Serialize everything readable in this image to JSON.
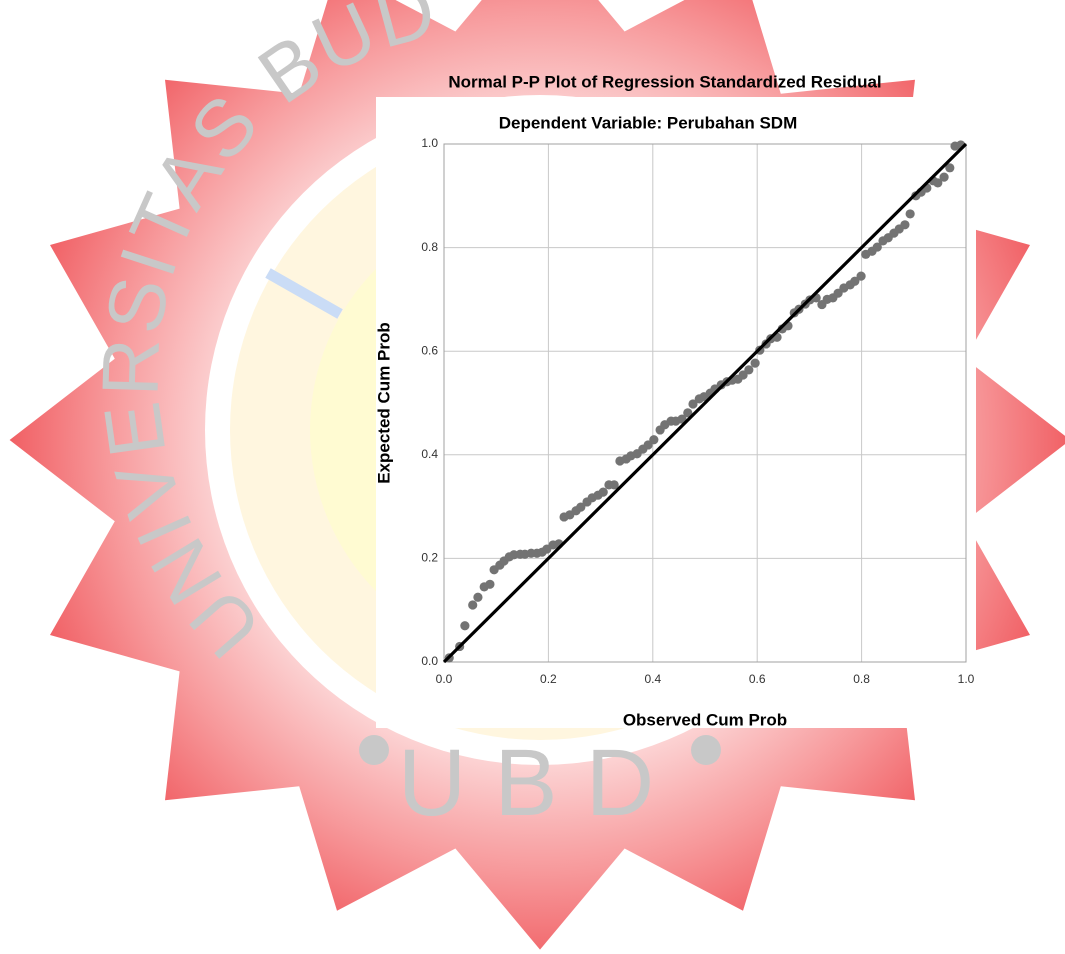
{
  "watermark": {
    "arc_text": "UNIVERSITAS BUD",
    "bottom_text": "UBD"
  },
  "chart_data": {
    "type": "scatter",
    "title": "Normal P-P Plot of Regression Standardized Residual",
    "subtitle": "Dependent Variable: Perubahan SDM",
    "x_label": "Observed Cum Prob",
    "y_label": "Expected Cum Prob",
    "xlim": [
      0,
      1
    ],
    "ylim": [
      0,
      1
    ],
    "xticks": [
      {
        "value": 0,
        "label": "0.0"
      },
      0.2,
      0.4,
      0.6,
      0.8,
      {
        "value": 1,
        "label": "1.0"
      }
    ],
    "yticks": [
      {
        "value": 0,
        "label": "0.0"
      },
      0.2,
      0.4,
      0.6,
      0.8,
      {
        "value": 1,
        "label": "1.0"
      }
    ],
    "grid": true,
    "color": "#737373",
    "reference_line": {
      "color": "#000000",
      "x": [
        0,
        1
      ],
      "y": [
        0,
        1
      ]
    },
    "x": [
      0.01,
      0.03,
      0.04,
      0.055,
      0.065,
      0.077,
      0.088,
      0.096,
      0.107,
      0.115,
      0.125,
      0.134,
      0.146,
      0.155,
      0.167,
      0.178,
      0.188,
      0.197,
      0.209,
      0.22,
      0.23,
      0.241,
      0.253,
      0.262,
      0.274,
      0.284,
      0.295,
      0.305,
      0.316,
      0.326,
      0.337,
      0.349,
      0.358,
      0.37,
      0.381,
      0.391,
      0.402,
      0.414,
      0.423,
      0.435,
      0.444,
      0.456,
      0.467,
      0.477,
      0.489,
      0.498,
      0.51,
      0.519,
      0.531,
      0.542,
      0.552,
      0.563,
      0.573,
      0.584,
      0.596,
      0.605,
      0.617,
      0.626,
      0.638,
      0.648,
      0.659,
      0.671,
      0.68,
      0.692,
      0.701,
      0.713,
      0.724,
      0.734,
      0.745,
      0.755,
      0.766,
      0.778,
      0.787,
      0.799,
      0.808,
      0.82,
      0.83,
      0.841,
      0.851,
      0.862,
      0.872,
      0.883,
      0.893,
      0.904,
      0.914,
      0.925,
      0.937,
      0.946,
      0.958,
      0.969,
      0.979,
      0.99
    ],
    "values": [
      0.008,
      0.03,
      0.07,
      0.11,
      0.125,
      0.145,
      0.15,
      0.178,
      0.187,
      0.195,
      0.203,
      0.207,
      0.208,
      0.208,
      0.21,
      0.21,
      0.212,
      0.218,
      0.226,
      0.228,
      0.28,
      0.284,
      0.292,
      0.299,
      0.309,
      0.317,
      0.322,
      0.328,
      0.342,
      0.342,
      0.388,
      0.392,
      0.398,
      0.402,
      0.411,
      0.419,
      0.429,
      0.448,
      0.458,
      0.465,
      0.465,
      0.469,
      0.481,
      0.498,
      0.508,
      0.512,
      0.519,
      0.527,
      0.535,
      0.541,
      0.544,
      0.546,
      0.554,
      0.564,
      0.577,
      0.602,
      0.614,
      0.624,
      0.627,
      0.643,
      0.649,
      0.674,
      0.681,
      0.691,
      0.699,
      0.703,
      0.69,
      0.7,
      0.703,
      0.712,
      0.722,
      0.728,
      0.735,
      0.745,
      0.787,
      0.793,
      0.801,
      0.813,
      0.819,
      0.828,
      0.836,
      0.844,
      0.865,
      0.9,
      0.907,
      0.915,
      0.929,
      0.925,
      0.936,
      0.954,
      0.996,
      0.998
    ]
  }
}
